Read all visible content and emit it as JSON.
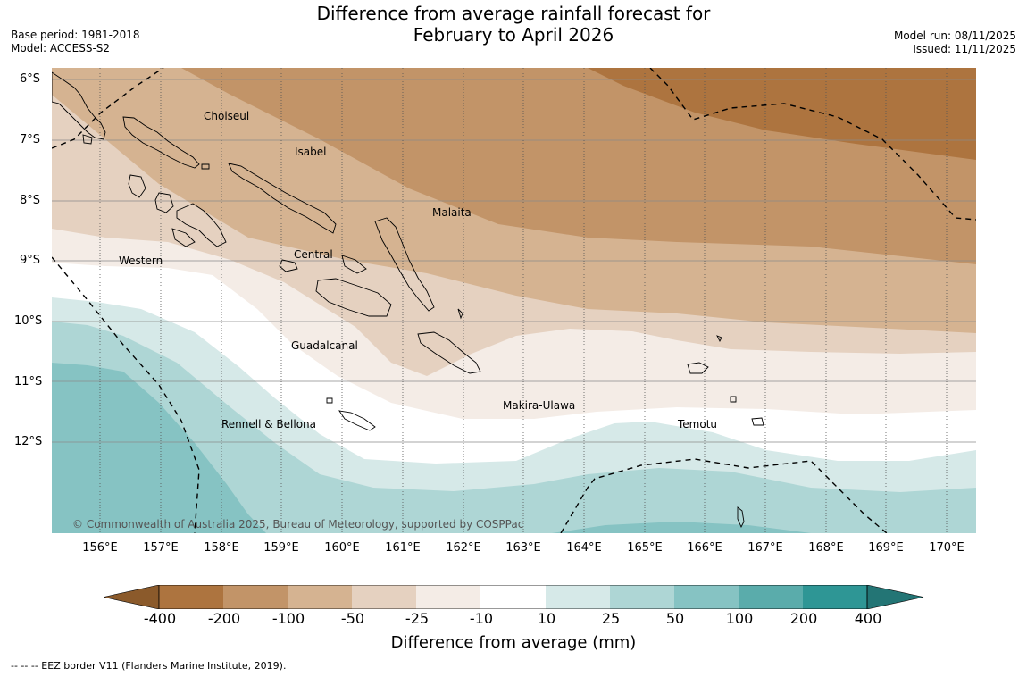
{
  "title": {
    "line1": "Difference from average rainfall forecast for",
    "line2": "February to April 2026"
  },
  "meta": {
    "base_period": "Base period: 1981-2018",
    "model": "Model: ACCESS-S2",
    "model_run": "Model run: 08/11/2025",
    "issued": "Issued: 11/11/2025"
  },
  "lat_labels": [
    "6°S",
    "7°S",
    "8°S",
    "9°S",
    "10°S",
    "11°S",
    "12°S"
  ],
  "lon_labels": [
    "156°E",
    "157°E",
    "158°E",
    "159°E",
    "160°E",
    "161°E",
    "162°E",
    "163°E",
    "164°E",
    "165°E",
    "166°E",
    "167°E",
    "168°E",
    "169°E",
    "170°E"
  ],
  "places": {
    "choiseul": "Choiseul",
    "isabel": "Isabel",
    "malaita": "Malaita",
    "western": "Western",
    "central": "Central",
    "guadalcanal": "Guadalcanal",
    "makira": "Makira-Ulawa",
    "rennell": "Rennell & Bellona",
    "temotu": "Temotu"
  },
  "copyright": "© Commonwealth of Australia 2025, Bureau of Meteorology, supported by COSPPac",
  "colorbar": {
    "ticks": [
      "-400",
      "-200",
      "-100",
      "-50",
      "-25",
      "-10",
      "10",
      "25",
      "50",
      "100",
      "200",
      "400"
    ],
    "colors": {
      "lt400": "#8b5a2b",
      "m400_m200": "#ad743f",
      "m200_m100": "#c29468",
      "m100_m50": "#d5b391",
      "m50_m25": "#e5d1c0",
      "m25_m10": "#f4ece6",
      "m10_10": "#ffffff",
      "p10_25": "#d6e9e8",
      "p25_50": "#aed6d5",
      "p50_100": "#86c3c3",
      "p100_200": "#5aacab",
      "p200_400": "#2e9695",
      "gt400": "#237575"
    },
    "label": "Difference from average (mm)"
  },
  "footnote": "--  --  -- EEZ border V11 (Flanders Marine Institute, 2019)."
}
